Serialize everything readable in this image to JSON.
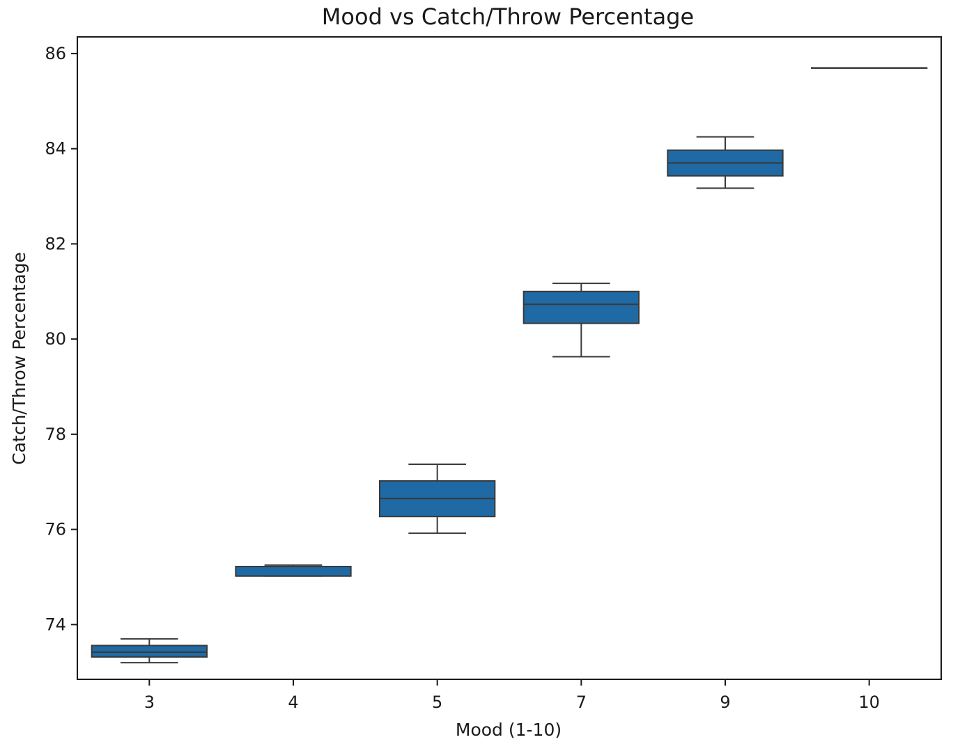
{
  "chart_data": {
    "type": "box",
    "title": "Mood vs Catch/Throw Percentage",
    "xlabel": "Mood (1-10)",
    "ylabel": "Catch/Throw Percentage",
    "ylim": [
      72.85,
      86.35
    ],
    "yticks": [
      74,
      76,
      78,
      80,
      82,
      84,
      86
    ],
    "grid": false,
    "colors": {
      "box": "#1f6aa5",
      "line": "#3a3a3a"
    },
    "boxes": [
      {
        "category": "3",
        "whisker_low": 73.2,
        "q1": 73.32,
        "median": 73.42,
        "q3": 73.56,
        "whisker_high": 73.7
      },
      {
        "category": "4",
        "whisker_low": 75.02,
        "q1": 75.02,
        "median": 75.02,
        "q3": 75.22,
        "whisker_high": 75.25
      },
      {
        "category": "5",
        "whisker_low": 75.92,
        "q1": 76.27,
        "median": 76.65,
        "q3": 77.02,
        "whisker_high": 77.37
      },
      {
        "category": "7",
        "whisker_low": 79.63,
        "q1": 80.33,
        "median": 80.73,
        "q3": 81.0,
        "whisker_high": 81.17
      },
      {
        "category": "9",
        "whisker_low": 83.17,
        "q1": 83.43,
        "median": 83.7,
        "q3": 83.97,
        "whisker_high": 84.25
      },
      {
        "category": "10",
        "whisker_low": 85.7,
        "q1": 85.7,
        "median": 85.7,
        "q3": 85.7,
        "whisker_high": 85.7
      }
    ]
  }
}
